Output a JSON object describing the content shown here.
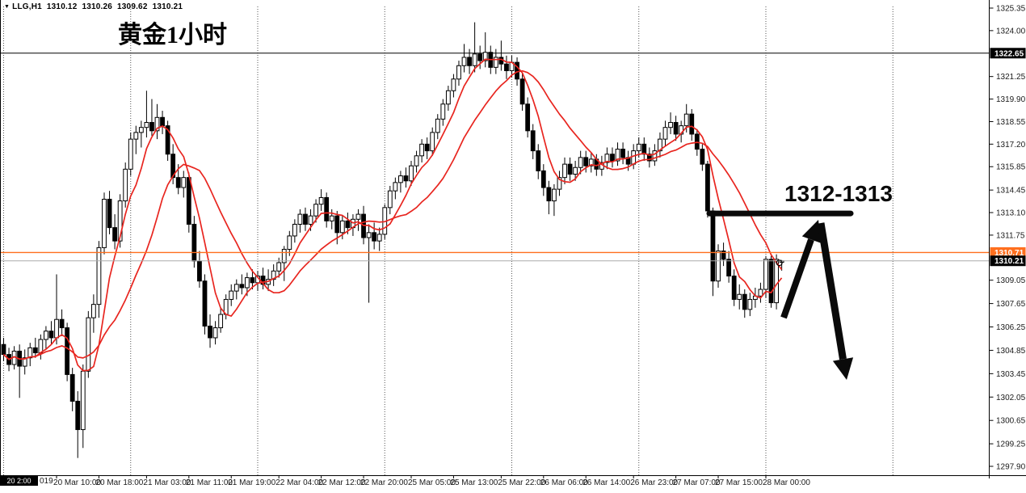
{
  "header": {
    "collapse_icon": "triangle-down",
    "symbol": "LLG,H1",
    "open": "1310.12",
    "high": "1310.26",
    "low": "1309.62",
    "close": "1310.21"
  },
  "title": "黄金1小时",
  "annotation": {
    "label": "1312-1313"
  },
  "price_axis": {
    "scale_labels": [
      "1325.35",
      "1324.00",
      "1321.25",
      "1319.90",
      "1318.55",
      "1317.20",
      "1315.85",
      "1314.45",
      "1313.10",
      "1311.75",
      "1309.05",
      "1307.65",
      "1306.25",
      "1304.85",
      "1303.45",
      "1302.05",
      "1300.65",
      "1299.25",
      "1297.90"
    ],
    "markers": {
      "high_line_label": "1322.65",
      "ask_label": "1310.71",
      "last_label": "1310.21"
    }
  },
  "time_axis": {
    "crosshair_label": "20 2:00",
    "year_fragment": "019",
    "labels": [
      "20 Mar 10:00",
      "20 Mar 18:00",
      "21 Mar 03:00",
      "21 Mar 11:00",
      "21 Mar 19:00",
      "22 Mar 04:00",
      "22 Mar 12:00",
      "22 Mar 20:00",
      "25 Mar 05:00",
      "25 Mar 13:00",
      "25 Mar 22:00",
      "26 Mar 06:00",
      "26 Mar 14:00",
      "26 Mar 23:00",
      "27 Mar 07:00",
      "27 Mar 15:00",
      "28 Mar 00:00"
    ]
  },
  "colors": {
    "background": "#ffffff",
    "candle_outline": "#000000",
    "candle_bull_fill": "#ffffff",
    "candle_bear_fill": "#000000",
    "ma_color": "#e8251f",
    "ask_line": "#ff6f1e",
    "last_line": "#ababab",
    "level_line": "#000000",
    "annotation": "#0a0a0a",
    "axis_text": "#1a1a1a",
    "box_text": "#ffffff",
    "grid_dotted": "#555555"
  },
  "chart_data": {
    "type": "candlestick",
    "symbol": "LLG",
    "timeframe": "H1",
    "title": "黄金1小时",
    "y_axis": {
      "max": 1325.35,
      "min": 1297.9
    },
    "current": {
      "open": 1310.12,
      "high": 1310.26,
      "low": 1309.62,
      "close": 1310.21,
      "ask": 1310.71,
      "last": 1310.21
    },
    "levels": {
      "high_line": 1322.65,
      "ask_line": 1310.71,
      "last_line": 1310.21,
      "resistance_zone": "1312-1313",
      "resistance_line": 1313.05
    },
    "moving_averages": {
      "fast_period": 6,
      "slow_period": 16,
      "style": "sma-of-close"
    },
    "candles": [
      [
        1305.2,
        1305.6,
        1304.2,
        1304.6
      ],
      [
        1304.6,
        1305.0,
        1303.6,
        1304.0
      ],
      [
        1304.0,
        1305.1,
        1303.7,
        1304.8
      ],
      [
        1304.8,
        1305.2,
        1302.0,
        1303.9
      ],
      [
        1303.9,
        1304.9,
        1303.4,
        1304.4
      ],
      [
        1304.4,
        1305.3,
        1303.9,
        1305.0
      ],
      [
        1305.0,
        1305.6,
        1304.4,
        1304.7
      ],
      [
        1304.7,
        1305.8,
        1304.3,
        1305.5
      ],
      [
        1305.5,
        1306.3,
        1304.9,
        1306.0
      ],
      [
        1306.0,
        1306.6,
        1305.2,
        1305.6
      ],
      [
        1305.6,
        1309.4,
        1305.2,
        1306.7
      ],
      [
        1306.7,
        1307.3,
        1305.7,
        1306.2
      ],
      [
        1306.2,
        1306.5,
        1303.0,
        1303.4
      ],
      [
        1303.4,
        1303.8,
        1301.2,
        1301.8
      ],
      [
        1301.8,
        1302.4,
        1298.4,
        1300.1
      ],
      [
        1300.1,
        1304.0,
        1299.0,
        1303.6
      ],
      [
        1303.6,
        1307.2,
        1303.2,
        1306.8
      ],
      [
        1306.8,
        1308.2,
        1305.9,
        1307.6
      ],
      [
        1307.6,
        1311.4,
        1306.8,
        1311.0
      ],
      [
        1311.0,
        1314.3,
        1310.6,
        1313.9
      ],
      [
        1313.9,
        1314.4,
        1311.8,
        1312.2
      ],
      [
        1312.2,
        1313.0,
        1310.9,
        1311.4
      ],
      [
        1311.4,
        1314.2,
        1311.0,
        1313.8
      ],
      [
        1313.8,
        1316.1,
        1313.4,
        1315.7
      ],
      [
        1315.7,
        1317.9,
        1315.3,
        1317.5
      ],
      [
        1317.5,
        1318.3,
        1316.6,
        1317.9
      ],
      [
        1317.9,
        1318.6,
        1317.0,
        1318.2
      ],
      [
        1318.2,
        1320.4,
        1317.6,
        1318.5
      ],
      [
        1318.5,
        1319.9,
        1317.7,
        1318.0
      ],
      [
        1318.0,
        1319.6,
        1317.5,
        1318.8
      ],
      [
        1318.8,
        1319.2,
        1317.8,
        1318.3
      ],
      [
        1318.3,
        1318.6,
        1316.2,
        1316.6
      ],
      [
        1316.6,
        1317.2,
        1314.8,
        1315.2
      ],
      [
        1315.2,
        1316.0,
        1314.2,
        1314.6
      ],
      [
        1314.6,
        1315.6,
        1314.0,
        1315.2
      ],
      [
        1315.2,
        1315.5,
        1311.9,
        1312.4
      ],
      [
        1312.4,
        1312.9,
        1309.8,
        1310.2
      ],
      [
        1310.2,
        1310.8,
        1308.6,
        1309.0
      ],
      [
        1309.0,
        1309.4,
        1305.8,
        1306.3
      ],
      [
        1306.3,
        1307.0,
        1305.0,
        1305.6
      ],
      [
        1305.6,
        1306.6,
        1305.2,
        1306.2
      ],
      [
        1306.2,
        1307.4,
        1305.9,
        1307.0
      ],
      [
        1307.0,
        1308.2,
        1306.7,
        1307.9
      ],
      [
        1307.9,
        1308.8,
        1307.5,
        1308.4
      ],
      [
        1308.4,
        1309.1,
        1307.9,
        1308.8
      ],
      [
        1308.8,
        1309.4,
        1308.2,
        1308.6
      ],
      [
        1308.6,
        1309.5,
        1308.1,
        1309.2
      ],
      [
        1309.2,
        1309.7,
        1308.5,
        1308.9
      ],
      [
        1308.9,
        1309.6,
        1308.4,
        1309.3
      ],
      [
        1309.3,
        1309.8,
        1308.5,
        1308.8
      ],
      [
        1308.8,
        1309.7,
        1308.4,
        1309.1
      ],
      [
        1309.1,
        1310.0,
        1308.7,
        1309.6
      ],
      [
        1309.6,
        1310.4,
        1309.2,
        1310.1
      ],
      [
        1310.1,
        1311.1,
        1309.0,
        1310.9
      ],
      [
        1310.9,
        1312.0,
        1310.5,
        1311.7
      ],
      [
        1311.7,
        1312.7,
        1311.3,
        1312.4
      ],
      [
        1312.4,
        1313.3,
        1311.9,
        1313.0
      ],
      [
        1313.0,
        1313.4,
        1312.0,
        1312.4
      ],
      [
        1312.4,
        1313.3,
        1312.0,
        1312.9
      ],
      [
        1312.9,
        1313.9,
        1312.5,
        1313.6
      ],
      [
        1313.6,
        1314.5,
        1313.2,
        1314.0
      ],
      [
        1314.0,
        1314.3,
        1312.2,
        1312.6
      ],
      [
        1312.6,
        1313.3,
        1312.1,
        1312.9
      ],
      [
        1312.9,
        1313.2,
        1311.2,
        1311.9
      ],
      [
        1311.9,
        1312.9,
        1311.5,
        1312.6
      ],
      [
        1312.6,
        1313.1,
        1311.8,
        1312.2
      ],
      [
        1312.2,
        1313.0,
        1311.7,
        1312.7
      ],
      [
        1312.7,
        1313.3,
        1312.0,
        1313.0
      ],
      [
        1313.0,
        1313.5,
        1311.2,
        1311.6
      ],
      [
        1311.6,
        1312.4,
        1307.7,
        1311.9
      ],
      [
        1311.9,
        1312.5,
        1310.9,
        1311.4
      ],
      [
        1311.4,
        1312.2,
        1310.8,
        1311.8
      ],
      [
        1311.8,
        1313.6,
        1311.5,
        1313.4
      ],
      [
        1313.4,
        1314.7,
        1313.0,
        1314.4
      ],
      [
        1314.4,
        1315.2,
        1313.9,
        1314.9
      ],
      [
        1314.9,
        1315.6,
        1314.3,
        1315.3
      ],
      [
        1315.3,
        1315.8,
        1314.6,
        1315.0
      ],
      [
        1315.0,
        1316.2,
        1314.7,
        1315.9
      ],
      [
        1315.9,
        1316.8,
        1315.5,
        1316.5
      ],
      [
        1316.5,
        1317.5,
        1316.1,
        1317.2
      ],
      [
        1317.2,
        1317.6,
        1316.3,
        1316.8
      ],
      [
        1316.8,
        1318.2,
        1316.5,
        1317.9
      ],
      [
        1317.9,
        1319.0,
        1317.5,
        1318.7
      ],
      [
        1318.7,
        1319.9,
        1318.3,
        1319.6
      ],
      [
        1319.6,
        1320.7,
        1319.2,
        1320.4
      ],
      [
        1320.4,
        1321.4,
        1320.0,
        1321.1
      ],
      [
        1321.1,
        1322.2,
        1320.7,
        1321.9
      ],
      [
        1321.9,
        1323.2,
        1321.5,
        1322.4
      ],
      [
        1322.4,
        1322.9,
        1321.4,
        1321.9
      ],
      [
        1321.9,
        1324.5,
        1321.5,
        1322.6
      ],
      [
        1322.6,
        1323.1,
        1321.7,
        1322.2
      ],
      [
        1322.2,
        1323.9,
        1321.8,
        1322.7
      ],
      [
        1322.7,
        1323.1,
        1321.4,
        1321.8
      ],
      [
        1321.8,
        1322.9,
        1321.4,
        1322.4
      ],
      [
        1322.4,
        1323.4,
        1321.6,
        1322.0
      ],
      [
        1322.0,
        1322.5,
        1321.1,
        1321.6
      ],
      [
        1321.6,
        1322.5,
        1321.2,
        1322.1
      ],
      [
        1322.1,
        1322.4,
        1320.7,
        1321.1
      ],
      [
        1321.1,
        1321.5,
        1319.2,
        1319.6
      ],
      [
        1319.6,
        1320.0,
        1317.6,
        1318.0
      ],
      [
        1318.0,
        1318.4,
        1316.3,
        1316.8
      ],
      [
        1316.8,
        1317.2,
        1315.1,
        1315.6
      ],
      [
        1315.6,
        1316.0,
        1314.1,
        1314.6
      ],
      [
        1314.6,
        1315.0,
        1313.0,
        1313.8
      ],
      [
        1313.8,
        1314.8,
        1312.9,
        1314.5
      ],
      [
        1314.5,
        1315.6,
        1314.1,
        1315.2
      ],
      [
        1315.2,
        1316.4,
        1314.8,
        1316.0
      ],
      [
        1316.0,
        1316.4,
        1315.0,
        1315.4
      ],
      [
        1315.4,
        1316.2,
        1315.0,
        1315.8
      ],
      [
        1315.8,
        1316.8,
        1315.4,
        1316.4
      ],
      [
        1316.4,
        1316.8,
        1315.5,
        1315.9
      ],
      [
        1315.9,
        1316.7,
        1315.5,
        1316.3
      ],
      [
        1316.3,
        1316.6,
        1315.3,
        1315.7
      ],
      [
        1315.7,
        1316.5,
        1315.3,
        1316.1
      ],
      [
        1316.1,
        1317.0,
        1315.7,
        1316.6
      ],
      [
        1316.6,
        1317.0,
        1315.8,
        1316.2
      ],
      [
        1316.2,
        1317.3,
        1315.9,
        1316.9
      ],
      [
        1316.9,
        1317.3,
        1316.0,
        1316.4
      ],
      [
        1316.4,
        1316.8,
        1315.6,
        1316.0
      ],
      [
        1316.0,
        1317.2,
        1315.7,
        1316.8
      ],
      [
        1316.8,
        1317.6,
        1316.4,
        1317.2
      ],
      [
        1317.2,
        1317.6,
        1316.2,
        1316.6
      ],
      [
        1316.6,
        1317.0,
        1315.8,
        1316.2
      ],
      [
        1316.2,
        1317.2,
        1315.9,
        1316.8
      ],
      [
        1316.8,
        1317.9,
        1316.4,
        1317.5
      ],
      [
        1317.5,
        1318.6,
        1317.1,
        1318.2
      ],
      [
        1318.2,
        1319.1,
        1317.8,
        1318.5
      ],
      [
        1318.5,
        1318.9,
        1317.4,
        1317.8
      ],
      [
        1317.8,
        1318.6,
        1317.3,
        1318.3
      ],
      [
        1318.3,
        1319.6,
        1317.9,
        1319.0
      ],
      [
        1319.0,
        1319.3,
        1317.4,
        1317.8
      ],
      [
        1317.8,
        1318.1,
        1316.5,
        1316.9
      ],
      [
        1316.9,
        1317.2,
        1315.6,
        1316.0
      ],
      [
        1316.0,
        1316.2,
        1312.8,
        1313.2
      ],
      [
        1313.2,
        1313.4,
        1308.1,
        1309.0
      ],
      [
        1309.0,
        1311.2,
        1308.6,
        1310.8
      ],
      [
        1310.8,
        1311.3,
        1309.9,
        1310.3
      ],
      [
        1310.3,
        1310.8,
        1308.9,
        1309.3
      ],
      [
        1309.3,
        1309.7,
        1307.5,
        1307.9
      ],
      [
        1307.9,
        1308.8,
        1307.3,
        1308.2
      ],
      [
        1308.2,
        1308.5,
        1306.8,
        1307.3
      ],
      [
        1307.3,
        1308.3,
        1306.9,
        1307.9
      ],
      [
        1307.9,
        1308.6,
        1307.4,
        1308.1
      ],
      [
        1308.1,
        1308.9,
        1307.7,
        1308.5
      ],
      [
        1308.5,
        1310.5,
        1308.0,
        1310.3
      ],
      [
        1310.3,
        1310.5,
        1307.4,
        1307.7
      ],
      [
        1307.7,
        1310.6,
        1307.3,
        1310.3
      ],
      [
        1310.12,
        1310.26,
        1309.62,
        1310.21
      ]
    ]
  }
}
